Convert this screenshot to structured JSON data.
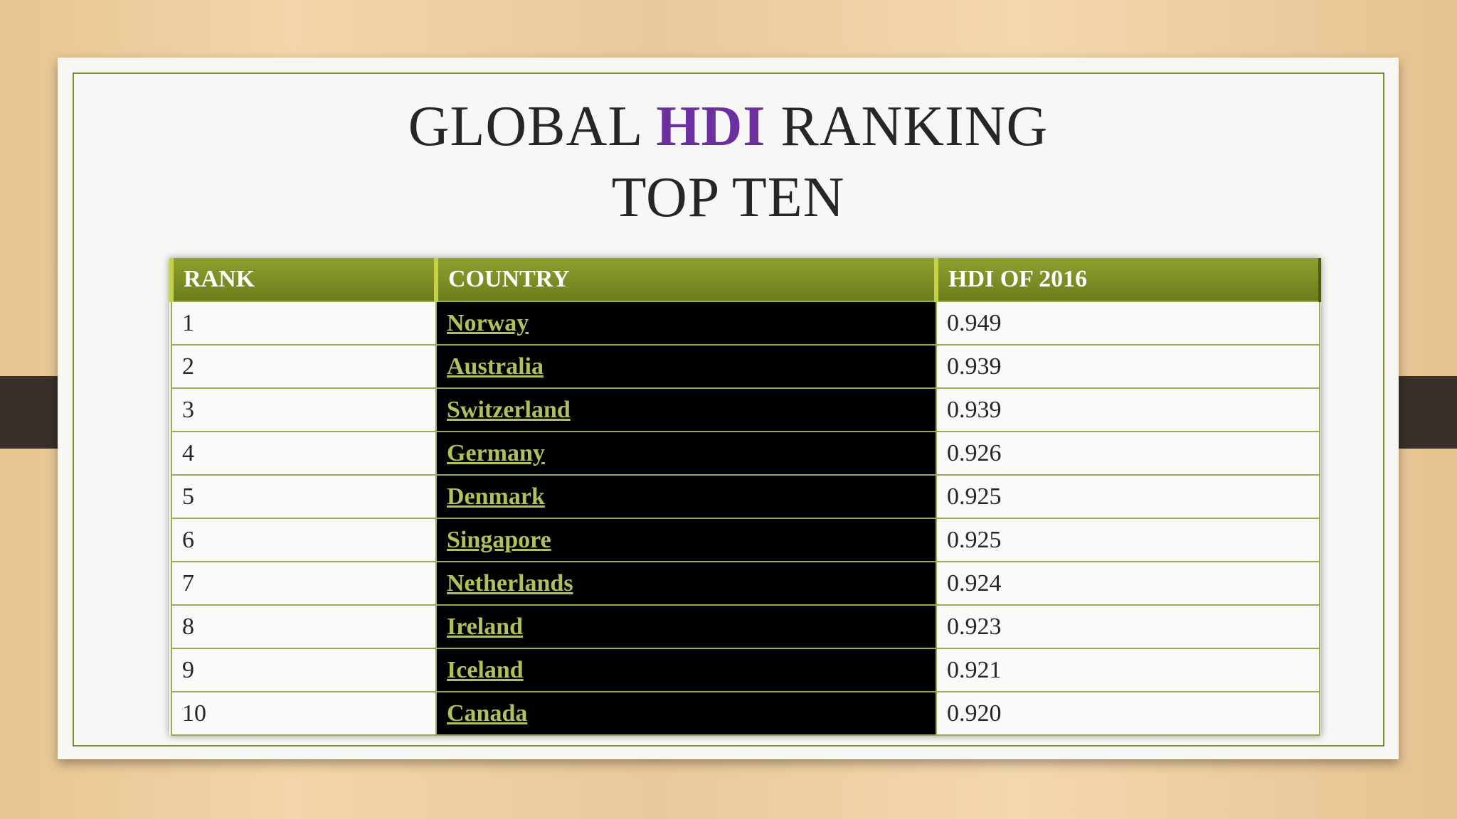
{
  "title": {
    "line1": [
      "GLOBAL",
      "HDI",
      "RANKING"
    ],
    "line2": "TOP TEN"
  },
  "table": {
    "header": [
      "RANK",
      "COUNTRY",
      "HDI OF 2016"
    ],
    "rows": [
      [
        "1",
        "Norway",
        "0.949"
      ],
      [
        "2",
        "Australia",
        "0.939"
      ],
      [
        "3",
        "Switzerland",
        "0.939"
      ],
      [
        "4",
        "Germany",
        "0.926"
      ],
      [
        "5",
        "Denmark",
        "0.925"
      ],
      [
        "6",
        "Singapore",
        "0.925"
      ],
      [
        "7",
        "Netherlands",
        "0.924"
      ],
      [
        "8",
        "Ireland",
        "0.923"
      ],
      [
        "9",
        "Iceland",
        "0.921"
      ],
      [
        "10",
        "Canada",
        "0.920"
      ]
    ]
  }
}
